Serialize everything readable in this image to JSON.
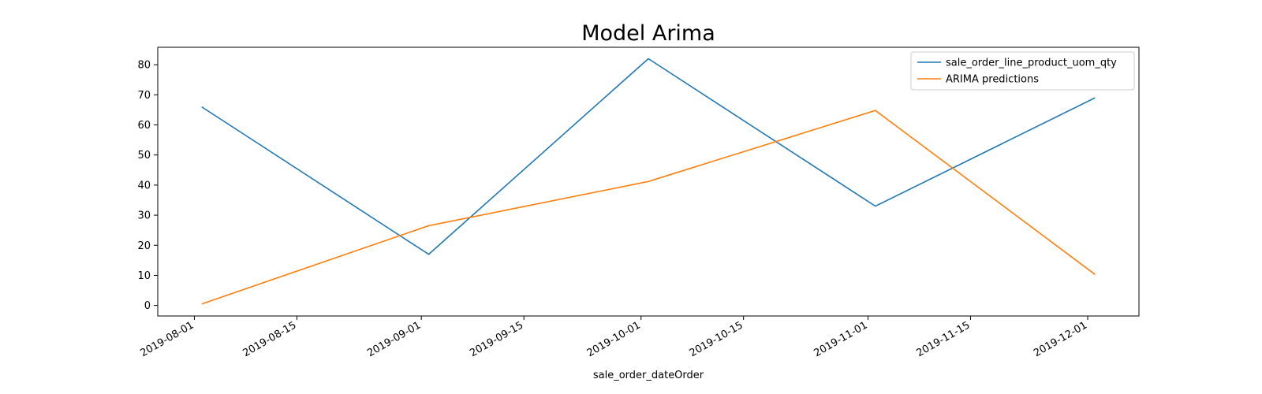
{
  "chart_data": {
    "type": "line",
    "title": "Model Arima",
    "xlabel": "sale_order_dateOrder",
    "ylabel": "",
    "x_type": "date",
    "x": [
      "2019-08-02",
      "2019-09-02",
      "2019-10-02",
      "2019-11-02",
      "2019-12-02"
    ],
    "xlim": [
      "2019-07-27",
      "2019-12-08"
    ],
    "ylim": [
      -3.5,
      85.8
    ],
    "x_ticks": [
      "2019-08-01",
      "2019-08-15",
      "2019-09-01",
      "2019-09-15",
      "2019-10-01",
      "2019-10-15",
      "2019-11-01",
      "2019-11-15",
      "2019-12-01"
    ],
    "y_ticks": [
      0,
      10,
      20,
      30,
      40,
      50,
      60,
      70,
      80
    ],
    "grid": false,
    "legend_position": "upper right",
    "series": [
      {
        "name": "sale_order_line_product_uom_qty",
        "color": "#1f77b4",
        "values": [
          66,
          17,
          82,
          33,
          69
        ]
      },
      {
        "name": "ARIMA predictions",
        "color": "#ff7f0e",
        "values": [
          0.5,
          26.5,
          41.2,
          64.8,
          10.3
        ]
      }
    ]
  }
}
